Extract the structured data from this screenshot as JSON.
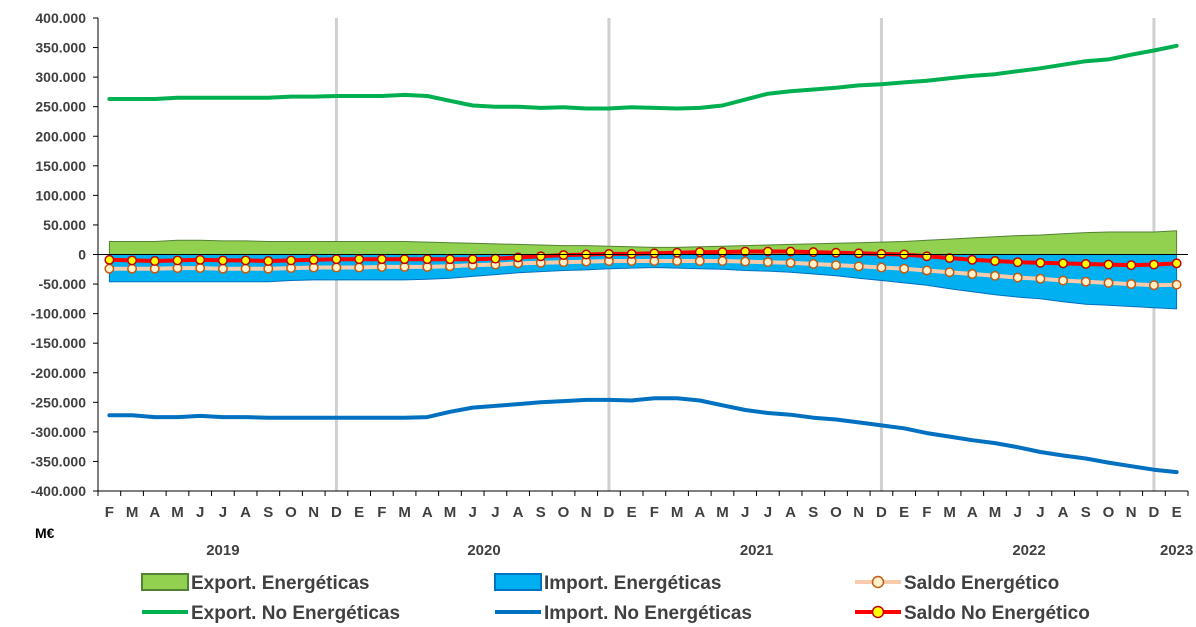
{
  "chart_data": {
    "type": "line",
    "title": "",
    "ylabel": "M€",
    "ylim": [
      -400000,
      400000
    ],
    "ytick_step": 50000,
    "yticks": [
      "400.000",
      "350.000",
      "300.000",
      "250.000",
      "200.000",
      "150.000",
      "100.000",
      "50.000",
      "0",
      "-50.000",
      "-100.000",
      "-150.000",
      "-200.000",
      "-250.000",
      "-300.000",
      "-350.000",
      "-400.000"
    ],
    "grid": "vertical lines at each December",
    "legend_position": "bottom",
    "months": [
      "F",
      "M",
      "A",
      "M",
      "J",
      "J",
      "A",
      "S",
      "O",
      "N",
      "D",
      "E",
      "F",
      "M",
      "A",
      "M",
      "J",
      "J",
      "A",
      "S",
      "O",
      "N",
      "D",
      "E",
      "F",
      "M",
      "A",
      "M",
      "J",
      "J",
      "A",
      "S",
      "O",
      "N",
      "D",
      "E",
      "F",
      "M",
      "A",
      "M",
      "J",
      "J",
      "A",
      "S",
      "O",
      "N",
      "D",
      "E"
    ],
    "years": [
      {
        "label": "2019",
        "start": 0,
        "end": 10
      },
      {
        "label": "2020",
        "start": 11,
        "end": 22
      },
      {
        "label": "2021",
        "start": 23,
        "end": 34
      },
      {
        "label": "2022",
        "start": 35,
        "end": 46
      },
      {
        "label": "2023",
        "start": 47,
        "end": 47
      }
    ],
    "series": [
      {
        "name": "Export. Energéticas",
        "kind": "area",
        "color": "#92D050",
        "stroke": "#548235",
        "values": [
          22000,
          22000,
          22000,
          24000,
          24000,
          23000,
          23000,
          22000,
          22000,
          22000,
          22000,
          22000,
          22000,
          22000,
          21000,
          20000,
          19000,
          18000,
          17000,
          16000,
          15000,
          15000,
          14000,
          13000,
          12000,
          12000,
          13000,
          14000,
          15000,
          16000,
          17000,
          18000,
          19000,
          20000,
          21000,
          22000,
          24000,
          26000,
          28000,
          30000,
          32000,
          33000,
          35000,
          37000,
          38000,
          38000,
          38000,
          40000
        ]
      },
      {
        "name": "Import. Energéticas",
        "kind": "area",
        "color": "#00B0F0",
        "stroke": "#0070C0",
        "values": [
          -46000,
          -46000,
          -46000,
          -46000,
          -46000,
          -46000,
          -46000,
          -46000,
          -44000,
          -43000,
          -43000,
          -43000,
          -43000,
          -43000,
          -42000,
          -40000,
          -37000,
          -34000,
          -31000,
          -29000,
          -27000,
          -26000,
          -24000,
          -23000,
          -22000,
          -23000,
          -24000,
          -25000,
          -27000,
          -28000,
          -30000,
          -33000,
          -36000,
          -40000,
          -44000,
          -48000,
          -52000,
          -58000,
          -63000,
          -68000,
          -72000,
          -75000,
          -80000,
          -84000,
          -86000,
          -88000,
          -90000,
          -92000
        ]
      },
      {
        "name": "Saldo Energético",
        "kind": "line-marker",
        "color": "#F8CBAD",
        "marker_fill": "#FFF2CC",
        "marker_stroke": "#C55A11",
        "values": [
          -24000,
          -24000,
          -24000,
          -23000,
          -23000,
          -24000,
          -24000,
          -24000,
          -23000,
          -22000,
          -22000,
          -22000,
          -21000,
          -21000,
          -21000,
          -20000,
          -18000,
          -17000,
          -15000,
          -14000,
          -13000,
          -12000,
          -11000,
          -11000,
          -11000,
          -11000,
          -11000,
          -11000,
          -12000,
          -13000,
          -14000,
          -16000,
          -18000,
          -20000,
          -22000,
          -24000,
          -27000,
          -30000,
          -33000,
          -36000,
          -39000,
          -41000,
          -44000,
          -46000,
          -48000,
          -50000,
          -52000,
          -51000
        ]
      },
      {
        "name": "Export. No Energéticas",
        "kind": "line",
        "color": "#00B050",
        "values": [
          263000,
          263000,
          263000,
          265000,
          265000,
          265000,
          265000,
          265000,
          267000,
          267000,
          268000,
          268000,
          268000,
          270000,
          268000,
          260000,
          252000,
          250000,
          250000,
          248000,
          249000,
          247000,
          247000,
          249000,
          248000,
          247000,
          248000,
          252000,
          262000,
          272000,
          276000,
          279000,
          282000,
          286000,
          288000,
          291000,
          294000,
          298000,
          302000,
          305000,
          310000,
          315000,
          321000,
          327000,
          330000,
          338000,
          345000,
          353000
        ]
      },
      {
        "name": "Import. No Energéticas",
        "kind": "line",
        "color": "#0070C0",
        "values": [
          -272000,
          -272000,
          -275000,
          -275000,
          -273000,
          -275000,
          -275000,
          -276000,
          -276000,
          -276000,
          -276000,
          -276000,
          -276000,
          -276000,
          -275000,
          -266000,
          -259000,
          -256000,
          -253000,
          -250000,
          -248000,
          -246000,
          -246000,
          -247000,
          -243000,
          -243000,
          -247000,
          -255000,
          -263000,
          -268000,
          -271000,
          -276000,
          -279000,
          -284000,
          -289000,
          -294000,
          -302000,
          -308000,
          -314000,
          -319000,
          -326000,
          -334000,
          -340000,
          -345000,
          -352000,
          -358000,
          -364000,
          -368000
        ]
      },
      {
        "name": "Saldo No Energético",
        "kind": "line-marker",
        "color": "#FF0000",
        "marker_fill": "#FFFF00",
        "marker_stroke": "#C00000",
        "values": [
          -9000,
          -10000,
          -11000,
          -10000,
          -9000,
          -10000,
          -10000,
          -11000,
          -10000,
          -9000,
          -8000,
          -8000,
          -8000,
          -8000,
          -8000,
          -8000,
          -8000,
          -7000,
          -5000,
          -3000,
          -1000,
          0,
          1000,
          1000,
          2000,
          3000,
          4000,
          4000,
          5000,
          5000,
          5000,
          4000,
          3000,
          2000,
          1000,
          0,
          -3000,
          -6000,
          -9000,
          -11000,
          -13000,
          -14000,
          -15000,
          -16000,
          -17000,
          -18000,
          -17000,
          -15000
        ]
      }
    ]
  }
}
